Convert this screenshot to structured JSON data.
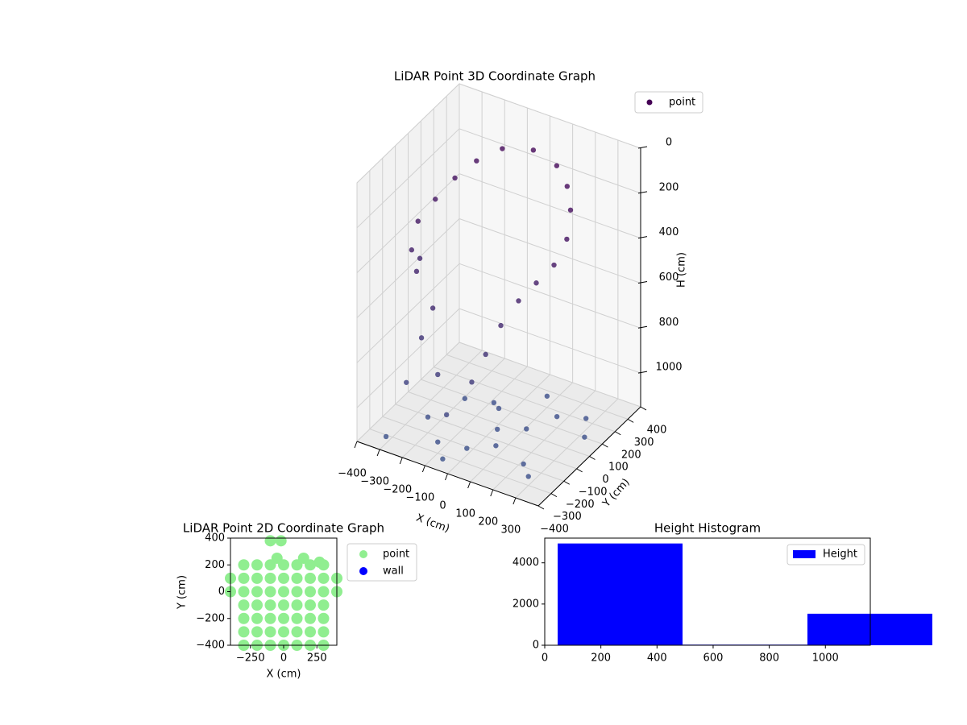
{
  "chart_data": [
    {
      "type": "scatter3d",
      "title": "LiDAR Point 3D Coordinate Graph",
      "xlabel": "X (cm)",
      "ylabel": "Y (cm)",
      "zlabel": "H (cm)",
      "xlim": [
        -400,
        400
      ],
      "ylim": [
        -400,
        400
      ],
      "zlim": [
        0,
        1150
      ],
      "z_inverted": true,
      "grid": true,
      "legend": "upper right",
      "xticks": [
        {
          "value": -400,
          "label": "−400"
        },
        {
          "value": -300,
          "label": "−300"
        },
        {
          "value": -200,
          "label": "−200"
        },
        {
          "value": -100,
          "label": "−100"
        },
        0,
        100,
        200,
        300
      ],
      "yticks": [
        {
          "value": -400,
          "label": "−400"
        },
        {
          "value": -300,
          "label": "−300"
        },
        {
          "value": -200,
          "label": "−200"
        },
        {
          "value": -100,
          "label": "−100"
        },
        0,
        100,
        200,
        300,
        400
      ],
      "zticks": [
        0,
        200,
        400,
        600,
        800,
        1000
      ],
      "series": [
        {
          "name": "point",
          "color": "#440154",
          "colormap": [
            "#440154",
            "#3b528b"
          ],
          "x": [
            -300,
            -280,
            -250,
            -200,
            -120,
            0,
            120,
            200,
            260,
            300,
            300,
            -300,
            -250,
            250,
            200,
            -320,
            -150,
            150,
            -200,
            100,
            -100,
            50,
            -250,
            -50,
            -100,
            0,
            100,
            -200,
            50,
            150,
            200,
            300,
            350,
            -50,
            -150,
            250,
            -300,
            0,
            100,
            300,
            -50
          ],
          "y": [
            -100,
            0,
            100,
            180,
            240,
            270,
            240,
            180,
            100,
            0,
            -100,
            -150,
            -200,
            -150,
            -200,
            -50,
            -250,
            -250,
            -250,
            -280,
            -300,
            -300,
            -280,
            -320,
            -300,
            -250,
            -200,
            -200,
            -100,
            -50,
            100,
            150,
            50,
            50,
            0,
            -250,
            -350,
            0,
            200,
            -300,
            -350
          ],
          "z": [
            300,
            250,
            200,
            150,
            100,
            80,
            90,
            120,
            160,
            220,
            280,
            400,
            450,
            350,
            420,
            500,
            550,
            520,
            700,
            650,
            800,
            780,
            900,
            950,
            1100,
            1120,
            1100,
            1080,
            1100,
            1090,
            1100,
            1100,
            1110,
            1100,
            1090,
            1100,
            1120,
            1080,
            1100,
            1110,
            1130
          ]
        }
      ]
    },
    {
      "type": "scatter",
      "title": "LiDAR Point 2D Coordinate Graph",
      "xlabel": "X (cm)",
      "ylabel": "Y (cm)",
      "xlim": [
        -400,
        400
      ],
      "ylim": [
        -400,
        400
      ],
      "legend": "outside right",
      "xticks": [
        {
          "value": -250,
          "label": "−250"
        },
        0,
        250
      ],
      "yticks": [
        {
          "value": -400,
          "label": "−400"
        },
        {
          "value": -200,
          "label": "−200"
        },
        0,
        200,
        400
      ],
      "series": [
        {
          "name": "point",
          "color": "#90ee90",
          "x": [
            -300,
            -200,
            -100,
            0,
            100,
            200,
            300,
            -300,
            -200,
            -100,
            0,
            100,
            200,
            300,
            -300,
            -200,
            -100,
            0,
            100,
            200,
            300,
            -300,
            -200,
            -100,
            0,
            100,
            200,
            300,
            -300,
            -200,
            -100,
            0,
            100,
            200,
            300,
            -300,
            -200,
            -100,
            0,
            100,
            200,
            300,
            -300,
            -200,
            -100,
            0,
            100,
            200,
            300,
            -400,
            -400,
            400,
            400,
            -100,
            -20,
            -50,
            150,
            270
          ],
          "y": [
            -400,
            -400,
            -400,
            -400,
            -400,
            -400,
            -400,
            -300,
            -300,
            -300,
            -300,
            -300,
            -300,
            -300,
            -200,
            -200,
            -200,
            -200,
            -200,
            -200,
            -200,
            -100,
            -100,
            -100,
            -100,
            -100,
            -100,
            -100,
            0,
            0,
            0,
            0,
            0,
            0,
            0,
            100,
            100,
            100,
            100,
            100,
            100,
            100,
            200,
            200,
            200,
            200,
            200,
            200,
            200,
            100,
            0,
            100,
            0,
            380,
            380,
            250,
            250,
            220
          ]
        },
        {
          "name": "wall",
          "color": "#0000ff",
          "x": [],
          "y": []
        }
      ]
    },
    {
      "type": "histogram",
      "title": "Height Histogram",
      "legend": "upper right",
      "bins": [
        46,
        491,
        936,
        1381
      ],
      "xlim": [
        0,
        1160
      ],
      "ylim": [
        0,
        5200
      ],
      "xticks": [
        0,
        200,
        400,
        600,
        800,
        1000
      ],
      "yticks": [
        0,
        2000,
        4000
      ],
      "series": [
        {
          "name": "Height",
          "color": "#0000ff",
          "values": [
            4940,
            30,
            1530
          ]
        }
      ]
    }
  ]
}
